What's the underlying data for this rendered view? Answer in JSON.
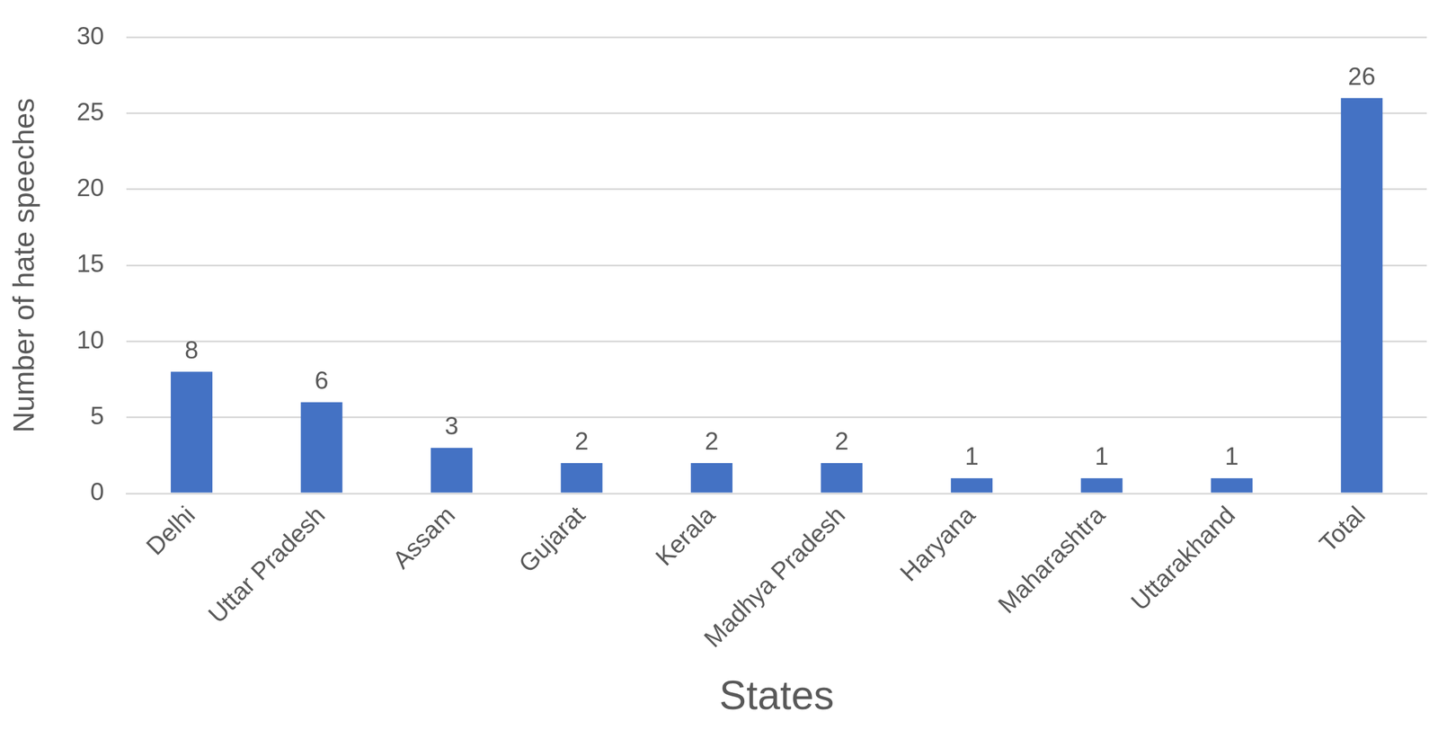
{
  "chart_data": {
    "type": "bar",
    "x_label": "States",
    "y_label": "Number of hate speeches",
    "categories": [
      "Delhi",
      "Uttar Pradesh",
      "Assam",
      "Gujarat",
      "Kerala",
      "Madhya Pradesh",
      "Haryana",
      "Maharashtra",
      "Uttarakhand",
      "Total"
    ],
    "values": [
      8,
      6,
      3,
      2,
      2,
      2,
      1,
      1,
      1,
      26
    ],
    "color": "#4472c4",
    "ylim": [
      0,
      30
    ],
    "yticks": [
      0,
      5,
      10,
      15,
      20,
      25,
      30
    ],
    "grid": true,
    "data_labels": true
  }
}
